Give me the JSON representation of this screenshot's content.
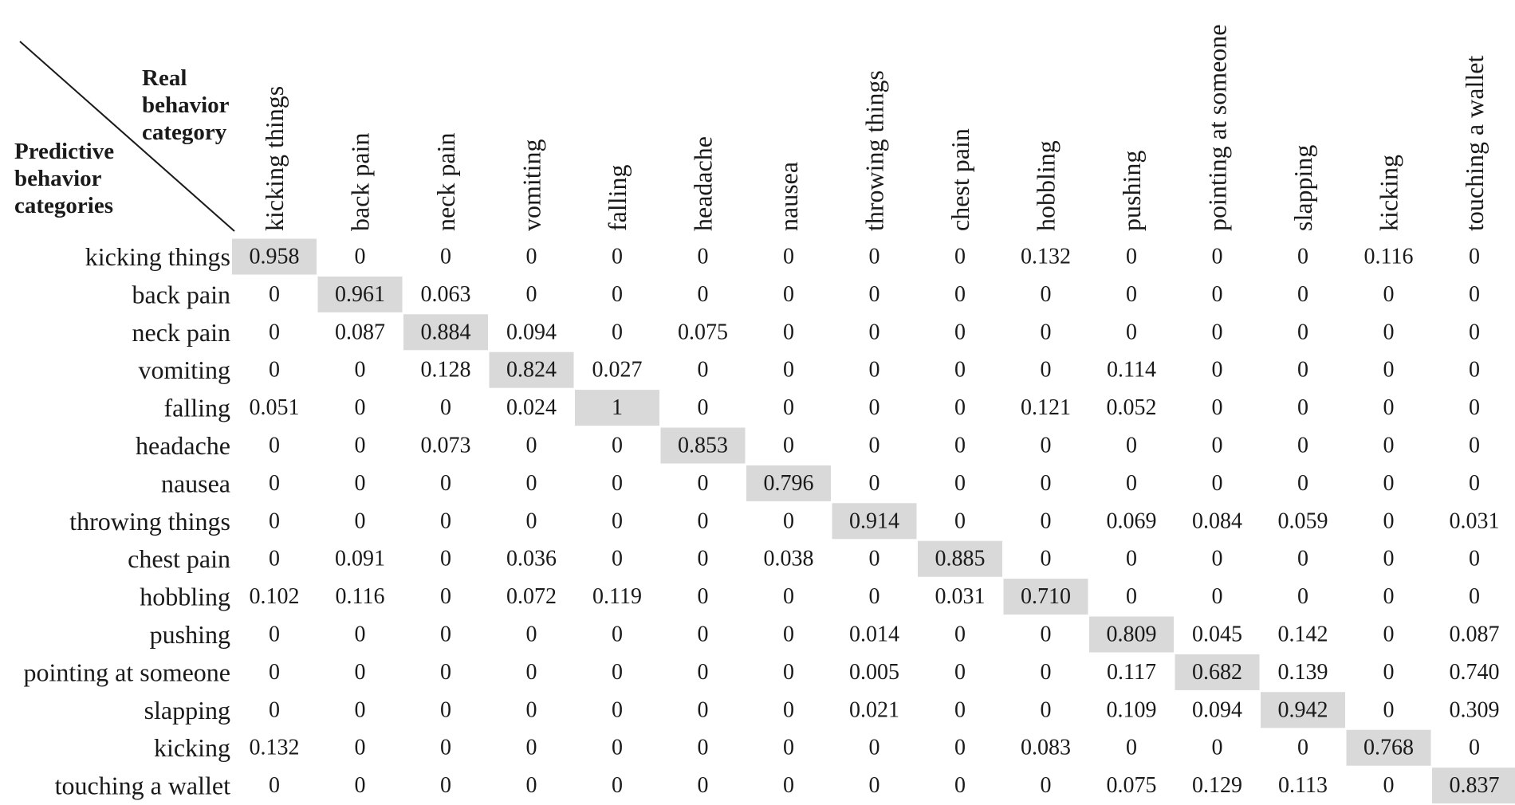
{
  "chart_data": {
    "type": "heatmap",
    "title": "",
    "corner": {
      "column_axis_label": [
        "Real",
        "behavior",
        "category"
      ],
      "row_axis_label": [
        "Predictive",
        "behavior",
        "categories"
      ]
    },
    "columns": [
      "kicking things",
      "back pain",
      "neck pain",
      "vomiting",
      "falling",
      "headache",
      "nausea",
      "throwing things",
      "chest pain",
      "hobbling",
      "pushing",
      "pointing at someone",
      "slapping",
      "kicking",
      "touching a wallet"
    ],
    "rows": [
      "kicking things",
      "back pain",
      "neck pain",
      "vomiting",
      "falling",
      "headache",
      "nausea",
      "throwing things",
      "chest pain",
      "hobbling",
      "pushing",
      "pointing at someone",
      "slapping",
      "kicking",
      "touching a wallet"
    ],
    "values": [
      [
        "0.958",
        "0",
        "0",
        "0",
        "0",
        "0",
        "0",
        "0",
        "0",
        "0.132",
        "0",
        "0",
        "0",
        "0.116",
        "0"
      ],
      [
        "0",
        "0.961",
        "0.063",
        "0",
        "0",
        "0",
        "0",
        "0",
        "0",
        "0",
        "0",
        "0",
        "0",
        "0",
        "0"
      ],
      [
        "0",
        "0.087",
        "0.884",
        "0.094",
        "0",
        "0.075",
        "0",
        "0",
        "0",
        "0",
        "0",
        "0",
        "0",
        "0",
        "0"
      ],
      [
        "0",
        "0",
        "0.128",
        "0.824",
        "0.027",
        "0",
        "0",
        "0",
        "0",
        "0",
        "0.114",
        "0",
        "0",
        "0",
        "0"
      ],
      [
        "0.051",
        "0",
        "0",
        "0.024",
        "1",
        "0",
        "0",
        "0",
        "0",
        "0.121",
        "0.052",
        "0",
        "0",
        "0",
        "0"
      ],
      [
        "0",
        "0",
        "0.073",
        "0",
        "0",
        "0.853",
        "0",
        "0",
        "0",
        "0",
        "0",
        "0",
        "0",
        "0",
        "0"
      ],
      [
        "0",
        "0",
        "0",
        "0",
        "0",
        "0",
        "0.796",
        "0",
        "0",
        "0",
        "0",
        "0",
        "0",
        "0",
        "0"
      ],
      [
        "0",
        "0",
        "0",
        "0",
        "0",
        "0",
        "0",
        "0.914",
        "0",
        "0",
        "0.069",
        "0.084",
        "0.059",
        "0",
        "0.031"
      ],
      [
        "0",
        "0.091",
        "0",
        "0.036",
        "0",
        "0",
        "0.038",
        "0",
        "0.885",
        "0",
        "0",
        "0",
        "0",
        "0",
        "0"
      ],
      [
        "0.102",
        "0.116",
        "0",
        "0.072",
        "0.119",
        "0",
        "0",
        "0",
        "0.031",
        "0.710",
        "0",
        "0",
        "0",
        "0",
        "0"
      ],
      [
        "0",
        "0",
        "0",
        "0",
        "0",
        "0",
        "0",
        "0.014",
        "0",
        "0",
        "0.809",
        "0.045",
        "0.142",
        "0",
        "0.087"
      ],
      [
        "0",
        "0",
        "0",
        "0",
        "0",
        "0",
        "0",
        "0.005",
        "0",
        "0",
        "0.117",
        "0.682",
        "0.139",
        "0",
        "0.740"
      ],
      [
        "0",
        "0",
        "0",
        "0",
        "0",
        "0",
        "0",
        "0.021",
        "0",
        "0",
        "0.109",
        "0.094",
        "0.942",
        "0",
        "0.309"
      ],
      [
        "0.132",
        "0",
        "0",
        "0",
        "0",
        "0",
        "0",
        "0",
        "0",
        "0.083",
        "0",
        "0",
        "0",
        "0.768",
        "0"
      ],
      [
        "0",
        "0",
        "0",
        "0",
        "0",
        "0",
        "0",
        "0",
        "0",
        "0",
        "0.075",
        "0.129",
        "0.113",
        "0",
        "0.837"
      ]
    ],
    "highlight": "diagonal",
    "colors": {
      "highlight": "#d9d9d9",
      "text": "#1a1a1a",
      "background": "#ffffff"
    }
  }
}
